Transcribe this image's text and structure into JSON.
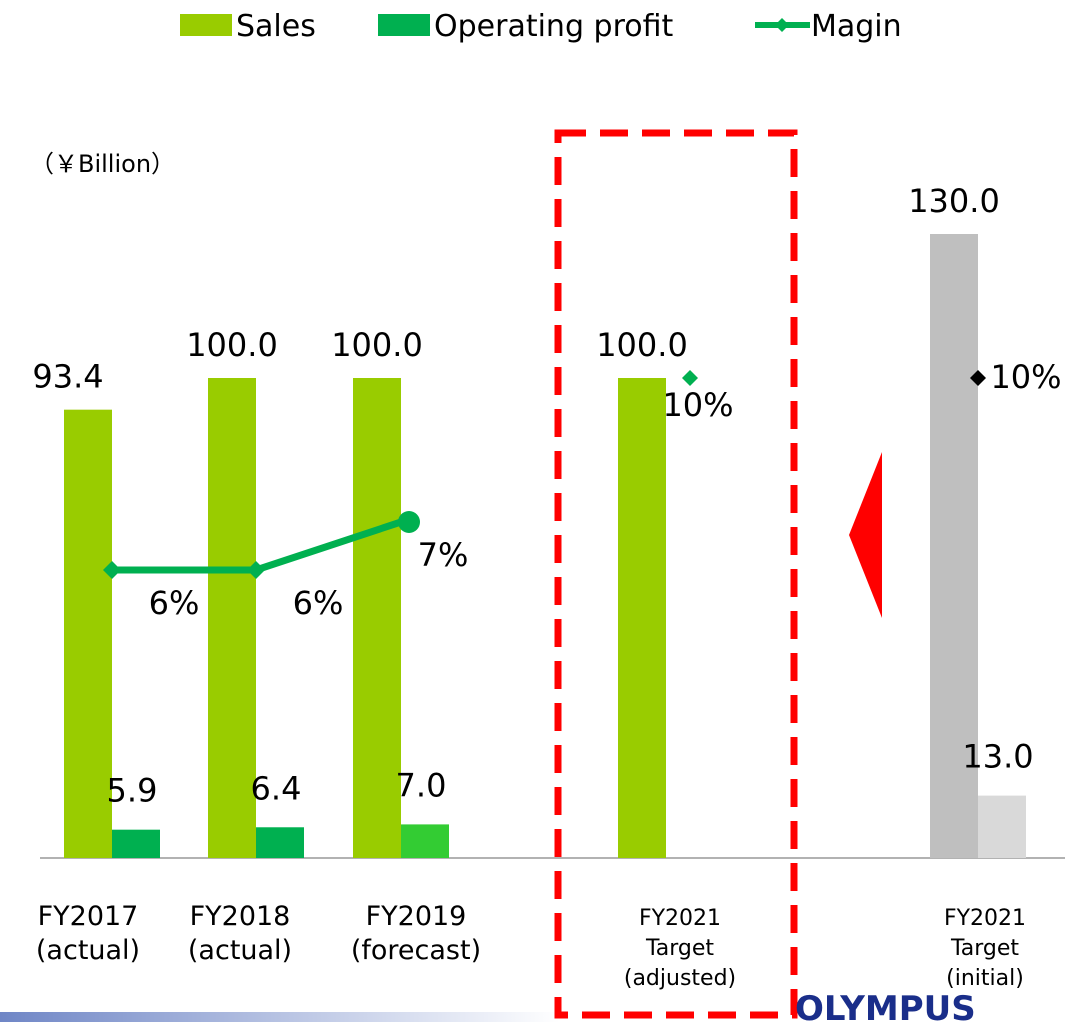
{
  "chart_data": {
    "type": "bar",
    "unit_label": "（￥Billion）",
    "categories": [
      "FY2017\n(actual)",
      "FY2018\n(actual)",
      "FY2019\n(forecast)",
      "FY2021\nTarget\n(adjusted)",
      "FY2021\nTarget\n(initial)"
    ],
    "ylim": [
      0,
      130
    ],
    "y2lim": [
      0,
      13
    ],
    "series": [
      {
        "name": "Sales",
        "color": "#99cc00",
        "point_colors": [
          "#99cc00",
          "#99cc00",
          "#99cc00",
          "#99cc00",
          "#bfbfbf"
        ],
        "values": [
          93.4,
          100,
          100,
          100,
          130
        ],
        "value_labels": [
          "93.4",
          "100.0",
          "100.0",
          "100.0",
          "130.0"
        ]
      },
      {
        "name": "Operating profit",
        "color": "#00b050",
        "point_colors": [
          "#00b050",
          "#00b050",
          "#33cc33",
          null,
          "#d9d9d9"
        ],
        "values": [
          5.9,
          6.4,
          7.0,
          null,
          13.0
        ],
        "value_labels": [
          "5.9",
          "6.4",
          "7.0",
          null,
          "13.0"
        ]
      },
      {
        "name": "Magin",
        "color": "#00b050",
        "axis": "y2",
        "point_colors": [
          "#00b050",
          "#00b050",
          "#00b050",
          "#00b050",
          "#000000"
        ],
        "connected": [
          true,
          true,
          true,
          false,
          false
        ],
        "values": [
          6,
          6,
          7,
          10,
          10
        ],
        "value_labels": [
          "6%",
          "6%",
          "7%",
          "10%",
          "10%"
        ]
      }
    ],
    "logo": "OLYMPUS"
  }
}
